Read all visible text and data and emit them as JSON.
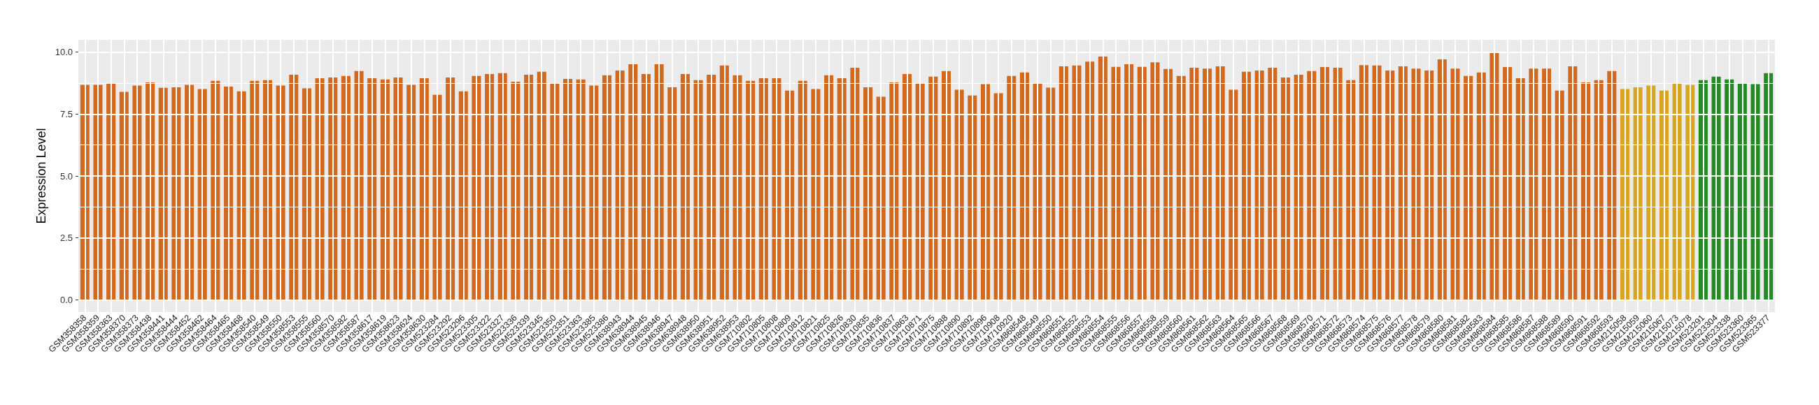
{
  "chart_data": {
    "type": "bar",
    "ylabel": "Expression Level",
    "categories": [
      "GSM358358",
      "GSM358359",
      "GSM358363",
      "GSM358370",
      "GSM358373",
      "GSM358438",
      "GSM358441",
      "GSM358444",
      "GSM358452",
      "GSM358462",
      "GSM358464",
      "GSM358465",
      "GSM358468",
      "GSM358540",
      "GSM358549",
      "GSM358550",
      "GSM358553",
      "GSM358555",
      "GSM358560",
      "GSM358570",
      "GSM358582",
      "GSM358587",
      "GSM358617",
      "GSM358619",
      "GSM358623",
      "GSM358624",
      "GSM358630",
      "GSM523284",
      "GSM523292",
      "GSM523296",
      "GSM523305",
      "GSM523322",
      "GSM523327",
      "GSM523336",
      "GSM523339",
      "GSM523345",
      "GSM523350",
      "GSM523351",
      "GSM523363",
      "GSM523385",
      "GSM523386",
      "GSM638943",
      "GSM638944",
      "GSM638945",
      "GSM638946",
      "GSM638947",
      "GSM638948",
      "GSM638950",
      "GSM638951",
      "GSM638952",
      "GSM638953",
      "GSM710802",
      "GSM710805",
      "GSM710808",
      "GSM710809",
      "GSM710812",
      "GSM710821",
      "GSM710825",
      "GSM710826",
      "GSM710830",
      "GSM710835",
      "GSM710836",
      "GSM710837",
      "GSM710863",
      "GSM710871",
      "GSM710875",
      "GSM710888",
      "GSM710890",
      "GSM710892",
      "GSM710896",
      "GSM710908",
      "GSM710920",
      "GSM868548",
      "GSM868549",
      "GSM868550",
      "GSM868551",
      "GSM868552",
      "GSM868553",
      "GSM868554",
      "GSM868555",
      "GSM868556",
      "GSM868557",
      "GSM868558",
      "GSM868559",
      "GSM868560",
      "GSM868561",
      "GSM868562",
      "GSM868563",
      "GSM868564",
      "GSM868565",
      "GSM868566",
      "GSM868567",
      "GSM868568",
      "GSM868569",
      "GSM868570",
      "GSM868571",
      "GSM868572",
      "GSM868573",
      "GSM868574",
      "GSM868575",
      "GSM868576",
      "GSM868577",
      "GSM868578",
      "GSM868579",
      "GSM868580",
      "GSM868581",
      "GSM868582",
      "GSM868583",
      "GSM868584",
      "GSM868585",
      "GSM868586",
      "GSM868587",
      "GSM868588",
      "GSM868589",
      "GSM868590",
      "GSM868591",
      "GSM868592",
      "GSM868593",
      "GSM215058",
      "GSM215059",
      "GSM215060",
      "GSM215067",
      "GSM215073",
      "GSM215078",
      "GSM523291",
      "GSM523304",
      "GSM523338",
      "GSM523360",
      "GSM523365",
      "GSM523377"
    ],
    "values": [
      8.68,
      8.68,
      8.75,
      8.4,
      8.65,
      8.78,
      8.56,
      8.58,
      8.68,
      8.51,
      8.84,
      8.61,
      8.42,
      8.84,
      8.87,
      8.65,
      9.09,
      8.54,
      8.95,
      8.98,
      9.04,
      9.24,
      8.95,
      8.9,
      8.98,
      8.68,
      8.95,
      8.28,
      8.98,
      8.42,
      9.04,
      9.12,
      9.15,
      8.81,
      9.09,
      9.21,
      8.73,
      8.92,
      8.9,
      8.65,
      9.07,
      9.26,
      9.51,
      9.12,
      9.51,
      8.58,
      9.12,
      8.87,
      9.09,
      9.46,
      9.07,
      8.84,
      8.95,
      8.95,
      8.45,
      8.84,
      8.51,
      9.07,
      8.95,
      9.37,
      8.58,
      8.2,
      8.78,
      9.12,
      8.75,
      9.01,
      9.24,
      8.48,
      8.25,
      8.71,
      8.34,
      9.04,
      9.18,
      8.75,
      8.57,
      9.43,
      9.46,
      9.62,
      9.82,
      9.41,
      9.51,
      9.41,
      9.59,
      9.32,
      9.04,
      9.37,
      9.34,
      9.43,
      8.48,
      9.21,
      9.26,
      9.37,
      8.98,
      9.09,
      9.24,
      9.4,
      9.37,
      8.87,
      9.48,
      9.46,
      9.26,
      9.43,
      9.34,
      9.26,
      9.71,
      9.34,
      9.04,
      9.18,
      10.02,
      9.4,
      8.95,
      9.34,
      9.34,
      8.45,
      9.43,
      8.78,
      8.87,
      9.24,
      8.51,
      8.58,
      8.65,
      8.45,
      8.73,
      8.68,
      8.87,
      9.01,
      8.9,
      8.75,
      8.71,
      9.15
    ],
    "colors": [
      "#d2691e",
      "#d2691e",
      "#d2691e",
      "#d2691e",
      "#d2691e",
      "#d2691e",
      "#d2691e",
      "#d2691e",
      "#d2691e",
      "#d2691e",
      "#d2691e",
      "#d2691e",
      "#d2691e",
      "#d2691e",
      "#d2691e",
      "#d2691e",
      "#d2691e",
      "#d2691e",
      "#d2691e",
      "#d2691e",
      "#d2691e",
      "#d2691e",
      "#d2691e",
      "#d2691e",
      "#d2691e",
      "#d2691e",
      "#d2691e",
      "#d2691e",
      "#d2691e",
      "#d2691e",
      "#d2691e",
      "#d2691e",
      "#d2691e",
      "#d2691e",
      "#d2691e",
      "#d2691e",
      "#d2691e",
      "#d2691e",
      "#d2691e",
      "#d2691e",
      "#d2691e",
      "#d2691e",
      "#d2691e",
      "#d2691e",
      "#d2691e",
      "#d2691e",
      "#d2691e",
      "#d2691e",
      "#d2691e",
      "#d2691e",
      "#d2691e",
      "#d2691e",
      "#d2691e",
      "#d2691e",
      "#d2691e",
      "#d2691e",
      "#d2691e",
      "#d2691e",
      "#d2691e",
      "#d2691e",
      "#d2691e",
      "#d2691e",
      "#d2691e",
      "#d2691e",
      "#d2691e",
      "#d2691e",
      "#d2691e",
      "#d2691e",
      "#d2691e",
      "#d2691e",
      "#d2691e",
      "#d2691e",
      "#d2691e",
      "#d2691e",
      "#d2691e",
      "#d2691e",
      "#d2691e",
      "#d2691e",
      "#d2691e",
      "#d2691e",
      "#d2691e",
      "#d2691e",
      "#d2691e",
      "#d2691e",
      "#d2691e",
      "#d2691e",
      "#d2691e",
      "#d2691e",
      "#d2691e",
      "#d2691e",
      "#d2691e",
      "#d2691e",
      "#d2691e",
      "#d2691e",
      "#d2691e",
      "#d2691e",
      "#d2691e",
      "#d2691e",
      "#d2691e",
      "#d2691e",
      "#d2691e",
      "#d2691e",
      "#d2691e",
      "#d2691e",
      "#d2691e",
      "#d2691e",
      "#d2691e",
      "#d2691e",
      "#d2691e",
      "#d2691e",
      "#d2691e",
      "#d2691e",
      "#d2691e",
      "#d2691e",
      "#d2691e",
      "#d2691e",
      "#d2691e",
      "#d2691e",
      "#daa520",
      "#daa520",
      "#daa520",
      "#daa520",
      "#daa520",
      "#daa520",
      "#228b22",
      "#228b22",
      "#228b22",
      "#228b22",
      "#228b22",
      "#228b22"
    ],
    "ylim": [
      -0.5,
      10.5
    ],
    "yticks": [
      {
        "value": 0,
        "label": "0.0"
      },
      {
        "value": 2.5,
        "label": "2.5"
      },
      {
        "value": 5,
        "label": "5.0"
      },
      {
        "value": 7.5,
        "label": "7.5"
      },
      {
        "value": 10,
        "label": "10.0"
      }
    ],
    "grid": true
  }
}
